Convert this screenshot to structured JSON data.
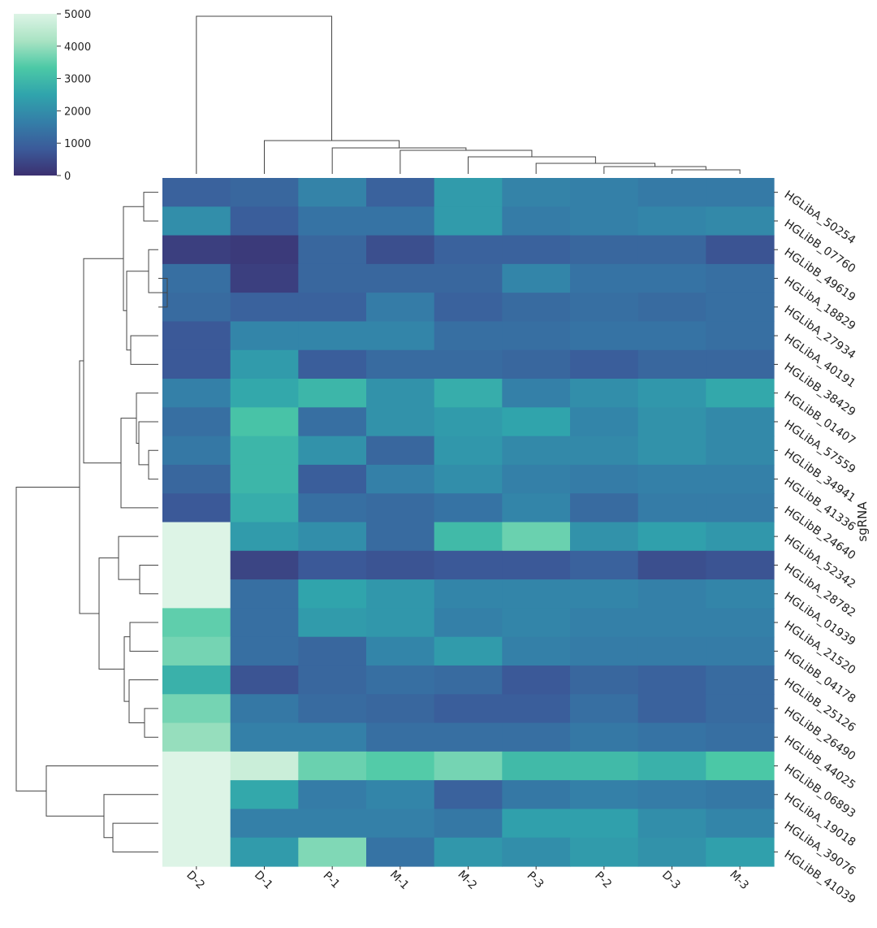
{
  "chart_data": {
    "type": "heatmap",
    "title": "",
    "xlabel": "",
    "ylabel": "sgRNA",
    "columns": [
      "D-2",
      "D-1",
      "P-1",
      "M-1",
      "M-2",
      "P-3",
      "P-2",
      "D-3",
      "M-3"
    ],
    "rows": [
      "HGLibA_50254",
      "HGLibB_07760",
      "HGLibB_49619",
      "HGLibA_18829",
      "HGLibA_27934",
      "HGLibA_40191",
      "HGLibB_38429",
      "HGLibB_01407",
      "HGLibA_57559",
      "HGLibB_34941",
      "HGLibB_41336",
      "HGLibB_24640",
      "HGLibA_52342",
      "HGLibA_28782",
      "HGLibA_01939",
      "HGLibA_21520",
      "HGLibB_04178",
      "HGLibB_25126",
      "HGLibB_26490",
      "HGLibB_44025",
      "HGLibB_06893",
      "HGLibA_19018",
      "HGLibA_39076",
      "HGLibB_41039"
    ],
    "values": [
      [
        1000,
        1100,
        1750,
        1000,
        2300,
        1750,
        1700,
        1550,
        1550
      ],
      [
        2000,
        900,
        1400,
        1400,
        2300,
        1600,
        1700,
        1800,
        1900
      ],
      [
        300,
        200,
        1100,
        600,
        1000,
        1000,
        1100,
        1100,
        700
      ],
      [
        1300,
        300,
        1100,
        1100,
        1100,
        1800,
        1400,
        1400,
        1300
      ],
      [
        1200,
        1000,
        1000,
        1600,
        1000,
        1200,
        1300,
        1200,
        1300
      ],
      [
        800,
        1800,
        1800,
        1800,
        1300,
        1300,
        1400,
        1400,
        1300
      ],
      [
        800,
        2300,
        900,
        1200,
        1200,
        1100,
        900,
        1100,
        1100
      ],
      [
        1700,
        2600,
        2900,
        2100,
        2700,
        1700,
        2000,
        2200,
        2600
      ],
      [
        1300,
        3200,
        1300,
        2100,
        2300,
        2500,
        1800,
        2100,
        1900
      ],
      [
        1500,
        2900,
        2100,
        1100,
        2200,
        1900,
        1900,
        2100,
        1900
      ],
      [
        1100,
        2900,
        900,
        1700,
        2000,
        1700,
        1600,
        1700,
        1700
      ],
      [
        800,
        2700,
        1300,
        1200,
        1400,
        1800,
        1200,
        1600,
        1600
      ],
      [
        5000,
        2300,
        2000,
        1200,
        3000,
        3600,
        2100,
        2400,
        2200
      ],
      [
        5000,
        400,
        800,
        700,
        800,
        800,
        1000,
        600,
        700
      ],
      [
        5000,
        1300,
        2500,
        2200,
        1800,
        1800,
        1800,
        1700,
        1800
      ],
      [
        3500,
        1300,
        2300,
        2200,
        1700,
        1800,
        1700,
        1700,
        1700
      ],
      [
        3700,
        1300,
        1100,
        1800,
        2300,
        1700,
        1600,
        1600,
        1600
      ],
      [
        2800,
        700,
        1100,
        1300,
        1200,
        800,
        1100,
        1000,
        1200
      ],
      [
        3700,
        1500,
        1200,
        1100,
        900,
        900,
        1300,
        1000,
        1200
      ],
      [
        4000,
        1700,
        1700,
        1300,
        1300,
        1300,
        1500,
        1400,
        1300
      ],
      [
        5000,
        4700,
        3600,
        3400,
        3700,
        3000,
        3000,
        2800,
        3300
      ],
      [
        5000,
        2600,
        1600,
        1800,
        1000,
        1500,
        1700,
        1600,
        1500
      ],
      [
        5000,
        1700,
        1700,
        1700,
        1500,
        2400,
        2400,
        2000,
        1800
      ],
      [
        5000,
        2300,
        3800,
        1400,
        2200,
        2000,
        2300,
        2100,
        2400
      ]
    ],
    "colorbar": {
      "min": 0,
      "max": 5000,
      "ticks": [
        "0",
        "1000",
        "2000",
        "3000",
        "4000",
        "5000"
      ]
    },
    "colormap": [
      "#3b3070",
      "#3b5b9a",
      "#347fa8",
      "#30a4ac",
      "#4cc9a6",
      "#a9e3c3",
      "#ddf4e6"
    ]
  }
}
